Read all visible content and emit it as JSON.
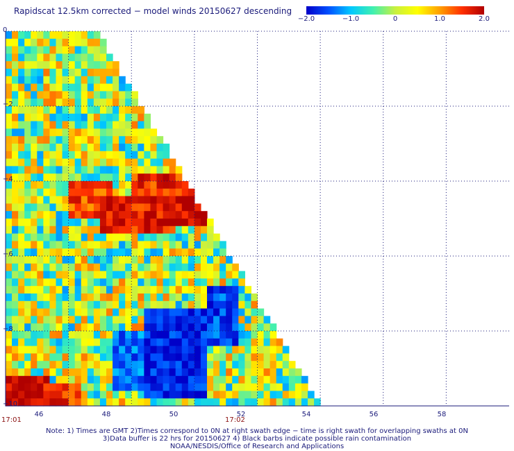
{
  "title": "Rapidscat 12.5km corrected − model winds 20150627 descending",
  "colorbar": {
    "stops": [
      "#0000c8",
      "#0050ff",
      "#00c8ff",
      "#40f0b0",
      "#c8f040",
      "#ffff00",
      "#ffa000",
      "#ff3000",
      "#b00000"
    ],
    "tick_labels": [
      "−2.0",
      "−1.0",
      "0",
      "1.0",
      "2.0"
    ],
    "ticks": [
      -2.0,
      -1.0,
      0,
      1.0,
      2.0
    ]
  },
  "chart_data": {
    "type": "heatmap",
    "title": "Rapidscat 12.5km corrected − model winds 20150627 descending",
    "xlim": [
      44,
      60
    ],
    "ylim": [
      -10,
      0
    ],
    "x_ticks": [
      46,
      48,
      50,
      52,
      54,
      56,
      58
    ],
    "x_tick_labels": [
      "46",
      "48",
      "50",
      "52",
      "54",
      "56",
      "58"
    ],
    "y_ticks": [
      0,
      -2,
      -4,
      -6,
      -8,
      -10
    ],
    "y_tick_labels": [
      "0",
      "−2",
      "−4",
      "−6",
      "−8",
      "−10"
    ],
    "color_range": [
      -2.0,
      2.0
    ],
    "grid": true,
    "swath_edge": [
      [
        46.9,
        0
      ],
      [
        54,
        -10
      ]
    ],
    "regions": [
      {
        "lon": [
          44.0,
          45.5
        ],
        "lat": [
          -10,
          -9.2
        ],
        "value": 1.8
      },
      {
        "lon": [
          45.5,
          46.5
        ],
        "lat": [
          -10,
          -9.4
        ],
        "value": 1.5
      },
      {
        "lon": [
          46.0,
          47.5
        ],
        "lat": [
          -4.0,
          -5.0
        ],
        "value": 1.4
      },
      {
        "lon": [
          47.0,
          49.5
        ],
        "lat": [
          -4.5,
          -5.5
        ],
        "value": 1.7
      },
      {
        "lon": [
          48.0,
          50.0
        ],
        "lat": [
          -3.8,
          -4.5
        ],
        "value": 1.6
      },
      {
        "lon": [
          49.5,
          50.5
        ],
        "lat": [
          -4.5,
          -5.2
        ],
        "value": 1.9
      },
      {
        "lon": [
          48.5,
          50.5
        ],
        "lat": [
          -7.5,
          -9.8
        ],
        "value": -1.8
      },
      {
        "lon": [
          50.5,
          51.5
        ],
        "lat": [
          -6.8,
          -8.5
        ],
        "value": -1.6
      },
      {
        "lon": [
          47.5,
          48.5
        ],
        "lat": [
          -8.0,
          -9.5
        ],
        "value": -1.4
      }
    ],
    "time_labels": [
      {
        "text": "17:01",
        "lon": 44.0
      },
      {
        "text": "17:02",
        "lon": 51.7
      }
    ]
  },
  "notes": [
    "Note: 1) Times are GMT 2)Times correspond to 0N at right swath edge − time is right swath for overlapping swaths at 0N",
    "3)Data buffer is 22 hrs for 20150627 4) Black barbs indicate possible rain contamination",
    "NOAA/NESDIS/Office of Research and Applications"
  ]
}
